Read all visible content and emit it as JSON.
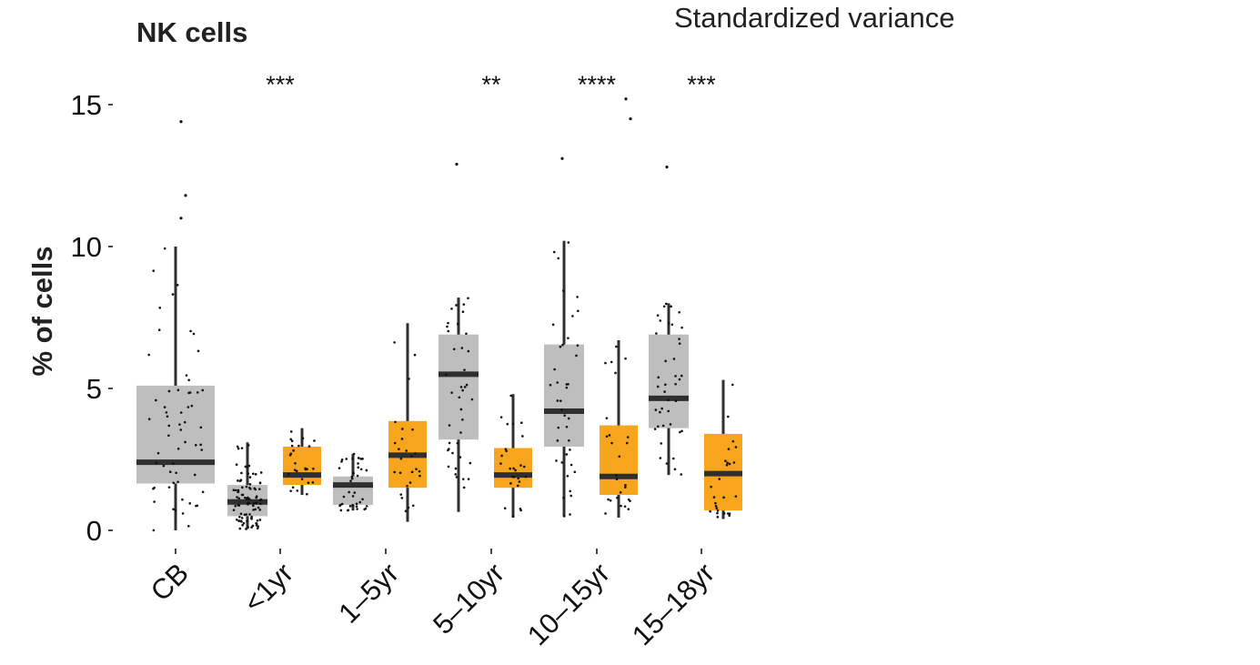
{
  "chart_data": {
    "type": "boxplot",
    "title": "NK cells",
    "subtitle": "Standardized variance",
    "xlabel": "",
    "ylabel": "% of cells",
    "ylim": [
      0,
      15
    ],
    "yticks": [
      0,
      5,
      10,
      15
    ],
    "categories": [
      "CB",
      "<1yr",
      "1–5yr",
      "5–10yr",
      "10–15yr",
      "15–18yr"
    ],
    "significance": [
      "",
      "***",
      "",
      "**",
      "****",
      "***"
    ],
    "colors": {
      "grey_box": "#bebebe",
      "orange_box": "#f7a51c",
      "median": "#2f2f2f",
      "whisker": "#2f2f2f",
      "point": "#111111",
      "axis": "#444444"
    },
    "series": [
      {
        "name": "grey",
        "color": "#bebebe",
        "boxes": [
          {
            "category": "CB",
            "whisker_low": 0.0,
            "q1": 1.65,
            "median": 2.4,
            "q3": 5.1,
            "whisker_high": 10.0
          },
          {
            "category": "<1yr",
            "whisker_low": 0.05,
            "q1": 0.5,
            "median": 1.0,
            "q3": 1.6,
            "whisker_high": 3.1
          },
          {
            "category": "1–5yr",
            "whisker_low": 0.7,
            "q1": 0.9,
            "median": 1.6,
            "q3": 1.9,
            "whisker_high": 2.7
          },
          {
            "category": "5–10yr",
            "whisker_low": 0.65,
            "q1": 3.2,
            "median": 5.5,
            "q3": 6.9,
            "whisker_high": 8.2
          },
          {
            "category": "10–15yr",
            "whisker_low": 0.5,
            "q1": 2.95,
            "median": 4.2,
            "q3": 6.55,
            "whisker_high": 10.2
          },
          {
            "category": "15–18yr",
            "whisker_low": 1.95,
            "q1": 3.6,
            "median": 4.65,
            "q3": 6.9,
            "whisker_high": 8.0
          }
        ]
      },
      {
        "name": "orange",
        "color": "#f7a51c",
        "boxes": [
          {
            "category": "<1yr",
            "whisker_low": 1.25,
            "q1": 1.6,
            "median": 1.95,
            "q3": 2.95,
            "whisker_high": 3.6
          },
          {
            "category": "1–5yr",
            "whisker_low": 0.3,
            "q1": 1.5,
            "median": 2.65,
            "q3": 3.85,
            "whisker_high": 7.3
          },
          {
            "category": "5–10yr",
            "whisker_low": 0.45,
            "q1": 1.5,
            "median": 1.95,
            "q3": 2.9,
            "whisker_high": 4.8
          },
          {
            "category": "10–15yr",
            "whisker_low": 0.45,
            "q1": 1.25,
            "median": 1.9,
            "q3": 3.7,
            "whisker_high": 6.7
          },
          {
            "category": "15–18yr",
            "whisker_low": 0.4,
            "q1": 0.7,
            "median": 2.0,
            "q3": 3.4,
            "whisker_high": 5.3
          }
        ]
      }
    ],
    "outliers": [
      {
        "category": "CB",
        "series": "grey",
        "values": [
          14.4,
          11.8,
          11.0
        ]
      },
      {
        "category": "5–10yr",
        "series": "grey",
        "values": [
          12.9
        ]
      },
      {
        "category": "10–15yr",
        "series": "grey",
        "values": [
          13.1
        ]
      },
      {
        "category": "10–15yr",
        "series": "orange",
        "values": [
          15.2,
          14.5
        ]
      },
      {
        "category": "15–18yr",
        "series": "grey",
        "values": [
          12.8
        ]
      }
    ]
  }
}
